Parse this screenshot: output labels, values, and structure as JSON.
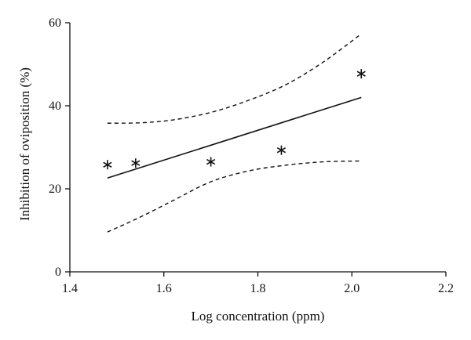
{
  "chart_data": {
    "type": "scatter",
    "xlabel": "Log concentration (ppm)",
    "ylabel": "Inhibition of oviposition (%)",
    "xlim": [
      1.4,
      2.2
    ],
    "ylim": [
      0,
      60
    ],
    "x_ticks": [
      1.4,
      1.6,
      1.8,
      2.0,
      2.2
    ],
    "y_ticks": [
      0,
      20,
      40,
      60
    ],
    "x_tick_labels": [
      "1.4",
      "1.6",
      "1.8",
      "2.0",
      "2.2"
    ],
    "y_tick_labels": [
      "0",
      "20",
      "40",
      "60"
    ],
    "grid": false,
    "legend": "none",
    "points": [
      {
        "x": 1.48,
        "y": 25.8
      },
      {
        "x": 1.54,
        "y": 26.2
      },
      {
        "x": 1.7,
        "y": 26.5
      },
      {
        "x": 1.85,
        "y": 29.3
      },
      {
        "x": 2.02,
        "y": 47.7
      }
    ],
    "regression_line": [
      {
        "x": 1.48,
        "y": 22.6
      },
      {
        "x": 2.02,
        "y": 42.0
      }
    ],
    "confidence_upper": [
      {
        "x": 1.48,
        "y": 35.8
      },
      {
        "x": 1.55,
        "y": 35.9
      },
      {
        "x": 1.62,
        "y": 36.6
      },
      {
        "x": 1.7,
        "y": 38.4
      },
      {
        "x": 1.78,
        "y": 41.3
      },
      {
        "x": 1.86,
        "y": 45.1
      },
      {
        "x": 1.94,
        "y": 50.6
      },
      {
        "x": 2.02,
        "y": 57.3
      }
    ],
    "confidence_lower": [
      {
        "x": 1.48,
        "y": 9.6
      },
      {
        "x": 1.55,
        "y": 13.2
      },
      {
        "x": 1.62,
        "y": 17.2
      },
      {
        "x": 1.7,
        "y": 21.7
      },
      {
        "x": 1.78,
        "y": 24.3
      },
      {
        "x": 1.86,
        "y": 25.7
      },
      {
        "x": 1.94,
        "y": 26.5
      },
      {
        "x": 2.02,
        "y": 26.7
      }
    ]
  }
}
